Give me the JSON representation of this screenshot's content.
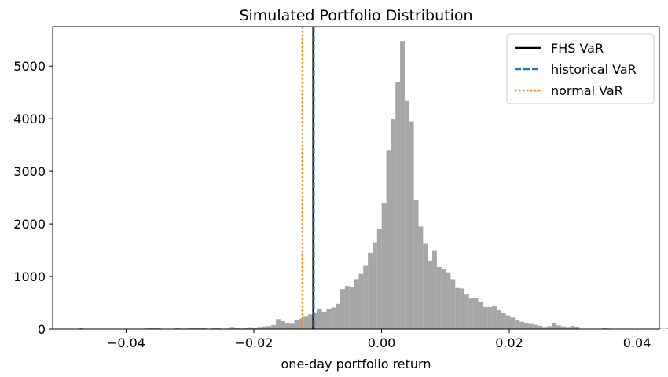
{
  "chart_data": {
    "type": "bar",
    "title": "Simulated Portfolio Distribution",
    "xlabel": "one-day portfolio return",
    "ylabel": "",
    "xlim": [
      -0.0515,
      0.0435
    ],
    "ylim": [
      0,
      5750
    ],
    "xticks": [
      -0.04,
      -0.02,
      0.0,
      0.02,
      0.04
    ],
    "xtick_labels": [
      "−0.04",
      "−0.02",
      "0.00",
      "0.02",
      "0.04"
    ],
    "yticks": [
      0,
      1000,
      2000,
      3000,
      4000,
      5000
    ],
    "ytick_labels": [
      "0",
      "1000",
      "2000",
      "3000",
      "4000",
      "5000"
    ],
    "grid": false,
    "legend_position": "top-right",
    "bar_color": "#a6a6a6",
    "histogram": {
      "bin_start": -0.0475,
      "bin_width": 0.00072,
      "counts": [
        20,
        5,
        5,
        5,
        5,
        5,
        5,
        5,
        5,
        5,
        5,
        5,
        5,
        5,
        10,
        20,
        15,
        15,
        5,
        5,
        5,
        15,
        10,
        10,
        20,
        25,
        20,
        15,
        5,
        25,
        30,
        5,
        10,
        40,
        25,
        10,
        30,
        35,
        30,
        40,
        50,
        55,
        75,
        190,
        150,
        120,
        115,
        170,
        200,
        250,
        280,
        315,
        390,
        330,
        380,
        410,
        480,
        760,
        820,
        800,
        950,
        1050,
        1200,
        1450,
        1650,
        1900,
        2400,
        3400,
        4000,
        4700,
        5480,
        4350,
        3950,
        2450,
        1950,
        1620,
        1300,
        1500,
        1180,
        1150,
        1080,
        950,
        780,
        770,
        670,
        580,
        590,
        520,
        420,
        420,
        450,
        360,
        300,
        260,
        220,
        170,
        140,
        120,
        110,
        80,
        60,
        40,
        55,
        120,
        70,
        50,
        40,
        60,
        45,
        5,
        5,
        5,
        5,
        5,
        20,
        10,
        5,
        5,
        5,
        5,
        5,
        5,
        5,
        5,
        5,
        5,
        10,
        5,
        15,
        5
      ]
    },
    "series": [
      {
        "name": "FHS VaR",
        "x": -0.0107,
        "color": "#000000",
        "style": "solid"
      },
      {
        "name": "historical VaR",
        "x": -0.0106,
        "color": "#1f77b4",
        "style": "dashed"
      },
      {
        "name": "normal VaR",
        "x": -0.0124,
        "color": "#ff7f0e",
        "style": "dotted"
      }
    ]
  }
}
